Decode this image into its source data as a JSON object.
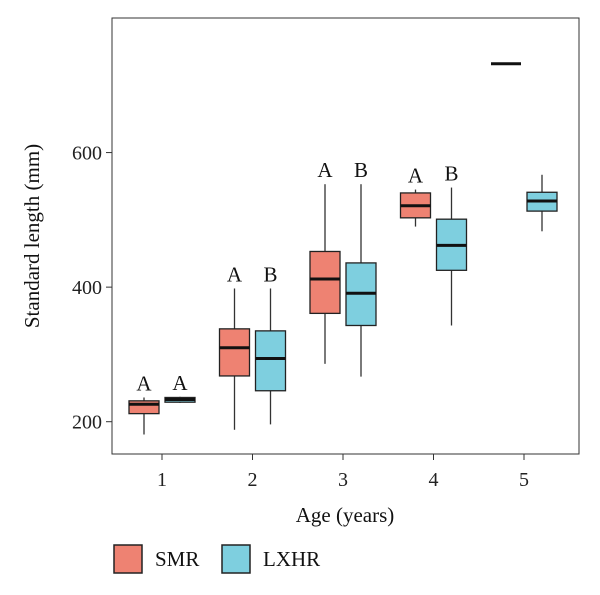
{
  "chart_data": {
    "type": "boxplot",
    "xlabel": "Age (years)",
    "ylabel": "Standard length (mm)",
    "categories": [
      "1",
      "2",
      "3",
      "4",
      "5"
    ],
    "y_ticks": [
      200,
      400,
      600
    ],
    "ylim": [
      152,
      800
    ],
    "grid": false,
    "legend_position": "bottom-left",
    "series": [
      {
        "name": "SMR",
        "color": "#ee8272",
        "boxes": [
          {
            "category": "1",
            "min": 181,
            "q1": 212,
            "median": 226,
            "q3": 231,
            "max": 236,
            "letter": "A"
          },
          {
            "category": "2",
            "min": 188,
            "q1": 268,
            "median": 310,
            "q3": 338,
            "max": 398,
            "letter": "A"
          },
          {
            "category": "3",
            "min": 286,
            "q1": 361,
            "median": 412,
            "q3": 453,
            "max": 553,
            "letter": "A"
          },
          {
            "category": "4",
            "min": 490,
            "q1": 503,
            "median": 521,
            "q3": 540,
            "max": 545,
            "letter": "A"
          },
          {
            "category": "5",
            "min": 732,
            "q1": 732,
            "median": 732,
            "q3": 732,
            "max": 732,
            "letter": ""
          }
        ]
      },
      {
        "name": "LXHR",
        "color": "#7ecfdf",
        "boxes": [
          {
            "category": "1",
            "min": 228,
            "q1": 229,
            "median": 233,
            "q3": 236,
            "max": 237,
            "letter": "A"
          },
          {
            "category": "2",
            "min": 196,
            "q1": 246,
            "median": 294,
            "q3": 335,
            "max": 398,
            "letter": "B"
          },
          {
            "category": "3",
            "min": 267,
            "q1": 343,
            "median": 391,
            "q3": 436,
            "max": 553,
            "letter": "B"
          },
          {
            "category": "4",
            "min": 343,
            "q1": 425,
            "median": 462,
            "q3": 501,
            "max": 548,
            "letter": "B"
          },
          {
            "category": "5",
            "min": 483,
            "q1": 513,
            "median": 528,
            "q3": 541,
            "max": 567,
            "letter": ""
          }
        ]
      }
    ]
  }
}
